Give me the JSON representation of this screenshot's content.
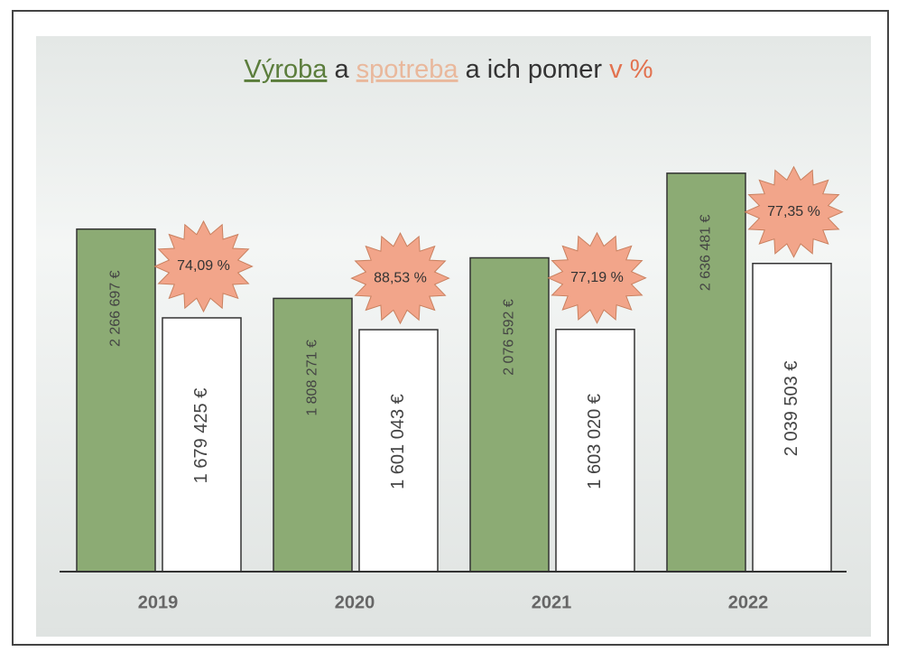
{
  "chart_data": {
    "type": "bar",
    "title": [
      "Výroba",
      "a",
      "spotreba",
      "a ich pomer",
      "v %"
    ],
    "categories": [
      "2019",
      "2020",
      "2021",
      "2022"
    ],
    "series": [
      {
        "color": "#8cab74",
        "values": [
          2266697,
          1808271,
          2076592,
          2636481
        ],
        "value_labels": [
          "2 266 697 €",
          "1 808 271 €",
          "2 076 592 €",
          "2 636 481 €"
        ]
      },
      {
        "color": "#ffffff",
        "values": [
          1679425,
          1601043,
          1603020,
          2039503
        ],
        "value_labels": [
          "1 679 425 €",
          "1 601 043 €",
          "1 603 020 €",
          "2 039 503 €"
        ]
      }
    ],
    "ratio": {
      "color": "#f2a58a",
      "values": [
        74.09,
        88.53,
        77.19,
        77.35
      ],
      "value_labels": [
        "74,09 %",
        "88,53 %",
        "77,19 %",
        "77,35 %"
      ]
    },
    "ylim": [
      0,
      3000000
    ]
  }
}
